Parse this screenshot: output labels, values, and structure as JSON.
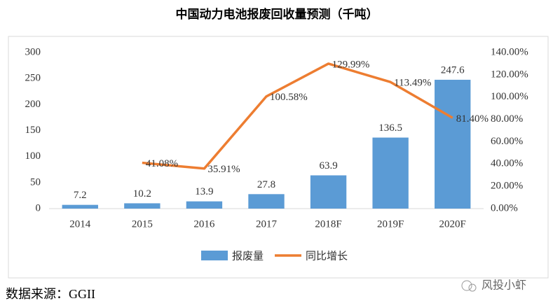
{
  "chart_data": {
    "type": "combo",
    "title": "中国动力电池报废回收量预测（千吨）",
    "categories": [
      "2014",
      "2015",
      "2016",
      "2017",
      "2018F",
      "2019F",
      "2020F"
    ],
    "series": [
      {
        "name": "报废量",
        "type": "bar",
        "color": "#5b9bd5",
        "values": [
          7.2,
          10.2,
          13.9,
          27.8,
          63.9,
          136.5,
          247.6
        ]
      },
      {
        "name": "同比增长",
        "type": "line",
        "axis": "y2",
        "color": "#ed7d31",
        "values": [
          null,
          41.08,
          35.91,
          100.58,
          129.99,
          113.49,
          81.4
        ],
        "value_labels": [
          null,
          "41.08%",
          "35.91%",
          "100.58%",
          "129.99%",
          "113.49%",
          "81.40%"
        ]
      }
    ],
    "ylim": [
      0,
      300
    ],
    "yticks": [
      0,
      50,
      100,
      150,
      200,
      250,
      300
    ],
    "y2lim": [
      0,
      140
    ],
    "y2ticks": [
      {
        "value": 0,
        "label": "0.00%"
      },
      {
        "value": 20,
        "label": "20.00%"
      },
      {
        "value": 40,
        "label": "40.00%"
      },
      {
        "value": 60,
        "label": "60.00%"
      },
      {
        "value": 80,
        "label": "80.00%"
      },
      {
        "value": 100,
        "label": "100.00%"
      },
      {
        "value": 120,
        "label": "120.00%"
      },
      {
        "value": 140,
        "label": "140.00%"
      }
    ],
    "grid": false,
    "legend": "bottom",
    "source": "数据来源：GGII",
    "watermark": "风投小虾"
  }
}
